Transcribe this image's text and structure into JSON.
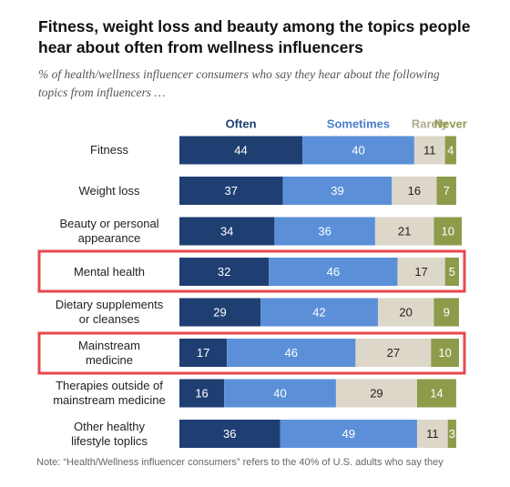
{
  "chart_data": {
    "type": "stacked-bar",
    "title": "Fitness, weight loss and beauty among the topics people hear about often from wellness influencers",
    "subtitle": "% of health/wellness influencer consumers who say they hear about the following topics from influencers …",
    "categories": [
      "Fitness",
      "Weight loss",
      "Beauty or personal\nappearance",
      "Mental health",
      "Dietary supplements\nor cleanses",
      "Mainstream\nmedicine",
      "Therapies outside of\nmainstream medicine",
      "Other healthy\nlifestyle toplics"
    ],
    "series": [
      {
        "name": "Often",
        "color": "#1f3f73",
        "label_color": "#1f3f73",
        "values": [
          44,
          37,
          34,
          32,
          29,
          17,
          16,
          36
        ]
      },
      {
        "name": "Sometimes",
        "color": "#5b90d8",
        "label_color": "#4a7fcb",
        "values": [
          40,
          39,
          36,
          46,
          42,
          46,
          40,
          49
        ]
      },
      {
        "name": "Rarely",
        "color": "#ddd7c9",
        "label_color": "#b3aa91",
        "values": [
          11,
          16,
          21,
          17,
          20,
          27,
          29,
          11
        ]
      },
      {
        "name": "Never",
        "color": "#8e9b4b",
        "label_color": "#8e9b4b",
        "values": [
          4,
          7,
          10,
          5,
          9,
          10,
          14,
          3
        ]
      }
    ],
    "note": "Note: “Health/Wellness influencer consumers” refers to the 40% of U.S. adults who say they"
  }
}
